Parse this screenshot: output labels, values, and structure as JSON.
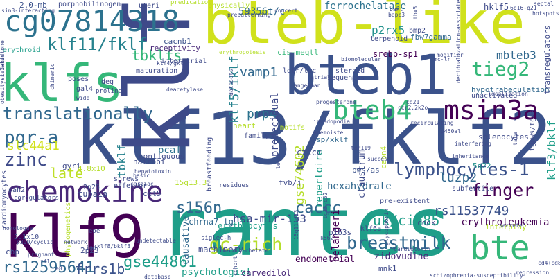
{
  "words": [
    {
      "text": "klf13/fklf2",
      "color": "#3b528b"
    },
    {
      "text": "klf",
      "color": "#3e4a89"
    },
    {
      "text": "rantes",
      "color": "#1f9e89"
    },
    {
      "text": "bteb-like",
      "color": "#d0e11c"
    },
    {
      "text": "bteb1",
      "color": "#3b528b"
    },
    {
      "text": "klfs",
      "color": "#35b779"
    },
    {
      "text": "klf9",
      "color": "#440154"
    },
    {
      "text": "cg07814318",
      "color": "#2c728e"
    },
    {
      "text": "chemokine",
      "color": "#482878"
    },
    {
      "text": "bteb4",
      "color": "#35b779"
    },
    {
      "text": "msin3a",
      "color": "#440154"
    },
    {
      "text": "bte",
      "color": "#35b779"
    },
    {
      "text": "translationally",
      "color": "#31688e"
    },
    {
      "text": "klf11/fklf",
      "color": "#26828e"
    },
    {
      "text": "lymphocytes-1",
      "color": "#3b528b"
    },
    {
      "text": "gc-rich",
      "color": "#b5de2b"
    },
    {
      "text": "breastmilk",
      "color": "#31688e"
    },
    {
      "text": "finger",
      "color": "#440154"
    },
    {
      "text": "tieg2",
      "color": "#35b779"
    },
    {
      "text": "zinc",
      "color": "#3e4a89"
    },
    {
      "text": "pgr-a",
      "color": "#31688e"
    },
    {
      "text": "rs12595641",
      "color": "#31688e"
    },
    {
      "text": "gse44861",
      "color": "#1f9e89"
    },
    {
      "text": "caccc",
      "color": "#31688e"
    },
    {
      "text": "s156n",
      "color": "#31688e"
    },
    {
      "text": "frrs1b",
      "color": "#3b528b"
    },
    {
      "text": "late",
      "color": "#bddf26"
    },
    {
      "text": "ferrochelatase",
      "color": "#2c728e"
    },
    {
      "text": "tbklfs",
      "color": "#35b779"
    },
    {
      "text": "vamp1",
      "color": "#31688e"
    },
    {
      "text": "prp4",
      "color": "#2c728e"
    },
    {
      "text": "mbteb3",
      "color": "#31688e"
    },
    {
      "text": "p2rx5",
      "color": "#21918c"
    },
    {
      "text": "slc44a1",
      "color": "#d0e11c"
    },
    {
      "text": "ruk/cin85",
      "color": "#1f9e89"
    },
    {
      "text": "hexahydrate",
      "color": "#31688e"
    },
    {
      "text": "rs11537749",
      "color": "#3b528b"
    },
    {
      "text": "hsa-mir-153",
      "color": "#3e4a89"
    },
    {
      "text": "luzp2",
      "color": "#31688e"
    },
    {
      "text": "erythroleukemia",
      "color": "#440154"
    },
    {
      "text": "gse74602",
      "color": "#b5de2b"
    },
    {
      "text": "klf5/iklf",
      "color": "#26828e"
    },
    {
      "text": "predecidual",
      "color": "#3e4a89"
    },
    {
      "text": "tbklf",
      "color": "#26828e"
    },
    {
      "text": "klf3/bklf",
      "color": "#1f9e89"
    },
    {
      "text": "hypotrabeculation",
      "color": "#31688e"
    },
    {
      "text": "pcaf",
      "color": "#2c728e"
    },
    {
      "text": "cacnb1",
      "color": "#3b528b"
    },
    {
      "text": "repertoire",
      "color": "#1f9e89"
    },
    {
      "text": "belangeri",
      "color": "#440154"
    },
    {
      "text": "claustrum",
      "color": "#3e4a89"
    },
    {
      "text": "zidovudine",
      "color": "#482878"
    },
    {
      "text": "endometrial",
      "color": "#440154"
    },
    {
      "text": "psychologist",
      "color": "#1f9e89"
    },
    {
      "text": "carvedilol",
      "color": "#482878"
    },
    {
      "text": "causative",
      "color": "#31688e"
    },
    {
      "text": "machinery",
      "color": "#3e4a89"
    },
    {
      "text": "erythrocytes",
      "color": "#1f9e89"
    },
    {
      "text": "chrna7-tg",
      "color": "#31688e"
    },
    {
      "text": "srebp-sp1",
      "color": "#440154"
    },
    {
      "text": "fbw7gamma",
      "color": "#31688e"
    },
    {
      "text": "cis-meqtl",
      "color": "#35b779"
    },
    {
      "text": "receptivity",
      "color": "#482878"
    },
    {
      "text": "hklf5",
      "color": "#3e4a89"
    },
    {
      "text": "59356t/c",
      "color": "#31688e"
    },
    {
      "text": "2.0-mb",
      "color": "#3b528b"
    },
    {
      "text": "porphobilinogen",
      "color": "#3e4a89"
    },
    {
      "text": "erythroid",
      "color": "#1f9e89"
    },
    {
      "text": "ctccc",
      "color": "#3e4a89"
    },
    {
      "text": "sp/xklf",
      "color": "#31688e"
    },
    {
      "text": "pws/as",
      "color": "#3b528b"
    },
    {
      "text": "splenocytes",
      "color": "#3e4a89"
    },
    {
      "text": "tgpws/tgas",
      "color": "#3e4a89"
    },
    {
      "text": "5q22",
      "color": "#21918c"
    },
    {
      "text": "ccl5",
      "color": "#3e4a89"
    },
    {
      "text": "tupaia",
      "color": "#3e4a89"
    },
    {
      "text": "contiguous",
      "color": "#3e4a89"
    },
    {
      "text": "nairobi",
      "color": "#3e4a89"
    },
    {
      "text": "effector",
      "color": "#3e4a89"
    },
    {
      "text": "shrews",
      "color": "#3e4a89"
    },
    {
      "text": "15q13.3",
      "color": "#b5de2b"
    },
    {
      "text": "4.8x10",
      "color": "#b5de2b"
    },
    {
      "text": "2p23",
      "color": "#3e4a89"
    },
    {
      "text": "2p25",
      "color": "#3e4a89"
    },
    {
      "text": "5.1x10",
      "color": "#3e4a89"
    },
    {
      "text": "pre-existent",
      "color": "#3e4a89"
    },
    {
      "text": "subfertile",
      "color": "#3e4a89"
    },
    {
      "text": "interplay",
      "color": "#b5de2b"
    },
    {
      "text": "cook",
      "color": "#3e4a89"
    },
    {
      "text": "klf6a",
      "color": "#3e4a89"
    },
    {
      "text": "p163s",
      "color": "#3e4a89"
    },
    {
      "text": "mnk1",
      "color": "#3e4a89"
    },
    {
      "text": "cbp",
      "color": "#3e4a89"
    },
    {
      "text": "gyri",
      "color": "#3e4a89"
    },
    {
      "text": "heart",
      "color": "#b5de2b"
    },
    {
      "text": "motifs",
      "color": "#b5de2b"
    },
    {
      "text": "family",
      "color": "#3e4a89"
    },
    {
      "text": "cardiomyocytes",
      "color": "#3e4a89"
    },
    {
      "text": "sequences",
      "color": "#3e4a89"
    },
    {
      "text": "steroid",
      "color": "#3e4a89"
    },
    {
      "text": "terpenoid",
      "color": "#3e4a89"
    },
    {
      "text": "bmp2",
      "color": "#3e4a89"
    },
    {
      "text": "unactivated",
      "color": "#3e4a89"
    },
    {
      "text": "transregulators",
      "color": "#3e4a89"
    },
    {
      "text": "poses",
      "color": "#3e4a89"
    },
    {
      "text": "deg",
      "color": "#3e4a89"
    },
    {
      "text": "maturation",
      "color": "#3e4a89"
    },
    {
      "text": "interatrial",
      "color": "#3e4a89"
    },
    {
      "text": "ldlr/luc",
      "color": "#3e4a89"
    },
    {
      "text": "uteri",
      "color": "#3e4a89"
    },
    {
      "text": "physically",
      "color": "#b5de2b"
    },
    {
      "text": "predication",
      "color": "#b5de2b"
    },
    {
      "text": "sin3-interacting",
      "color": "#3e4a89"
    },
    {
      "text": "sin3-histone",
      "color": "#3e4a89"
    },
    {
      "text": "obesity-related",
      "color": "#3e4a89"
    },
    {
      "text": "gal4",
      "color": "#3e4a89"
    },
    {
      "text": "proline",
      "color": "#3e4a89"
    },
    {
      "text": "wide",
      "color": "#3e4a89"
    },
    {
      "text": "pah2",
      "color": "#3e4a89"
    },
    {
      "text": "coregulators",
      "color": "#3e4a89"
    },
    {
      "text": "homologue",
      "color": "#3e4a89"
    },
    {
      "text": "p300/cyclic",
      "color": "#3e4a89"
    },
    {
      "text": "pregnant",
      "color": "#3e4a89"
    },
    {
      "text": "zfl",
      "color": "#3e4a89"
    },
    {
      "text": "e8",
      "color": "#3e4a89"
    },
    {
      "text": "phylogenetics",
      "color": "#b5de2b"
    },
    {
      "text": "eoe",
      "color": "#3e4a89"
    },
    {
      "text": "igd",
      "color": "#3e4a89"
    },
    {
      "text": "klf8/bklf3",
      "color": "#3e4a89"
    },
    {
      "text": "undetectable",
      "color": "#3e4a89"
    },
    {
      "text": "network",
      "color": "#3e4a89"
    },
    {
      "text": "database",
      "color": "#3e4a89"
    },
    {
      "text": "hepatotoxin",
      "color": "#3e4a89"
    },
    {
      "text": "cardiac",
      "color": "#3e4a89"
    },
    {
      "text": "basic",
      "color": "#3e4a89"
    },
    {
      "text": "breastfeeding",
      "color": "#3e4a89"
    },
    {
      "text": "residues",
      "color": "#3e4a89"
    },
    {
      "text": "siglec-h",
      "color": "#3e4a89"
    },
    {
      "text": "ferric-chelate",
      "color": "#3e4a89"
    },
    {
      "text": "cohort",
      "color": "#3e4a89"
    },
    {
      "text": "fvb/j",
      "color": "#3e4a89"
    },
    {
      "text": "lecs",
      "color": "#3e4a89"
    },
    {
      "text": "progesterone",
      "color": "#3e4a89"
    },
    {
      "text": "invadopodia",
      "color": "#3e4a89"
    },
    {
      "text": "capn4",
      "color": "#b5de2b"
    },
    {
      "text": "recirculating",
      "color": "#3e4a89"
    },
    {
      "text": "p450al",
      "color": "#3e4a89"
    },
    {
      "text": "interfering",
      "color": "#3e4a89"
    },
    {
      "text": "inheritance",
      "color": "#3e4a89"
    },
    {
      "text": "tata",
      "color": "#3e4a89"
    },
    {
      "text": "secreted",
      "color": "#3e4a89"
    },
    {
      "text": "cardiotoxin",
      "color": "#3e4a89"
    },
    {
      "text": "glycophorin",
      "color": "#3e4a89"
    },
    {
      "text": "schizophrenia-susceptibility",
      "color": "#3e4a89"
    },
    {
      "text": "regression",
      "color": "#3e4a89"
    },
    {
      "text": "cd4+cd8",
      "color": "#3e4a89"
    },
    {
      "text": "hotspots",
      "color": "#3e4a89"
    },
    {
      "text": "septal",
      "color": "#3e4a89"
    },
    {
      "text": "6q16-q21",
      "color": "#3e4a89"
    },
    {
      "text": "tbx5",
      "color": "#3e4a89"
    },
    {
      "text": "bakt",
      "color": "#3e4a89"
    },
    {
      "text": "bapc3",
      "color": "#3e4a89"
    },
    {
      "text": "concert",
      "color": "#3e4a89"
    },
    {
      "text": "prepatterning",
      "color": "#3e4a89"
    },
    {
      "text": "biomolecular",
      "color": "#3e4a89"
    },
    {
      "text": "modifier",
      "color": "#3e4a89"
    },
    {
      "text": "decidualization-associated",
      "color": "#3e4a89"
    },
    {
      "text": "localization",
      "color": "#3e4a89"
    },
    {
      "text": "t-domain",
      "color": "#3e4a89"
    },
    {
      "text": "days",
      "color": "#3e4a89"
    },
    {
      "text": "datasets",
      "color": "#3e4a89"
    },
    {
      "text": "angelman",
      "color": "#3e4a89"
    },
    {
      "text": "atrial",
      "color": "#3e4a89"
    },
    {
      "text": "anemoiste",
      "color": "#3e4a89"
    },
    {
      "text": "ter119",
      "color": "#3e4a89"
    },
    {
      "text": "success",
      "color": "#3e4a89"
    },
    {
      "text": "tg13-q32",
      "color": "#3e4a89"
    },
    {
      "text": "15q11-q13",
      "color": "#3e4a89"
    },
    {
      "text": "k562",
      "color": "#3e4a89"
    },
    {
      "text": "cd21",
      "color": "#3e4a89"
    },
    {
      "text": "ccr2.2k2o",
      "color": "#3e4a89"
    },
    {
      "text": "mc-lr",
      "color": "#3e4a89"
    },
    {
      "text": "deacetylase",
      "color": "#3e4a89"
    },
    {
      "text": "klf4/gklf",
      "color": "#3e4a89"
    },
    {
      "text": "chimeric",
      "color": "#3e4a89"
    },
    {
      "text": "erythropoiesis",
      "color": "#b5de2b"
    }
  ]
}
